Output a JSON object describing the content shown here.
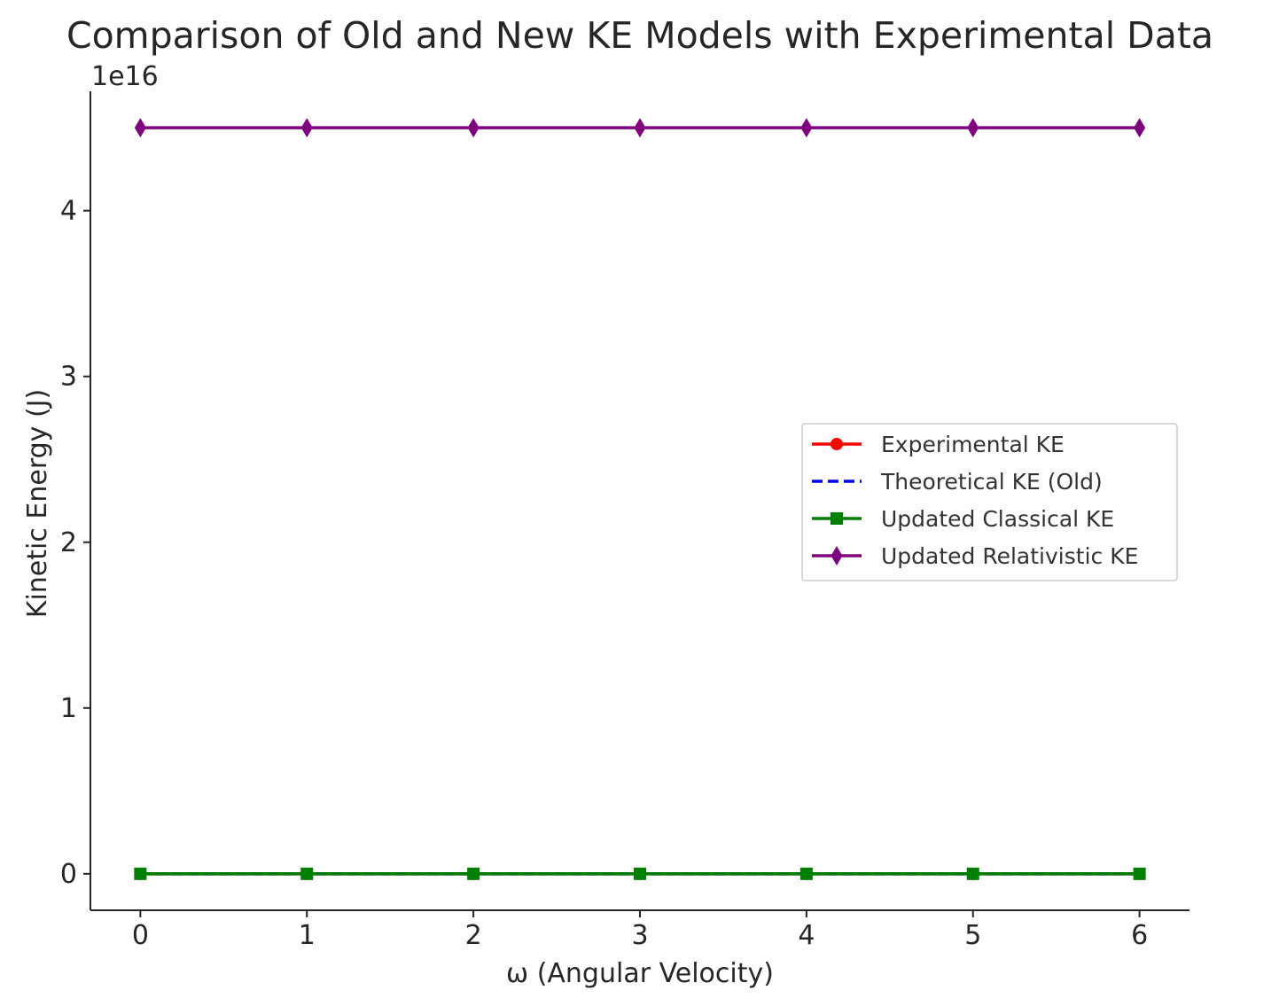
{
  "chart_data": {
    "type": "line",
    "title": "Comparison of Old and New KE Models with Experimental Data",
    "xlabel": "ω (Angular Velocity)",
    "ylabel": "Kinetic Energy (J)",
    "y_offset_label": "1e16",
    "x": [
      0,
      1,
      2,
      3,
      4,
      5,
      6
    ],
    "xlim": [
      -0.3,
      6.3
    ],
    "ylim": [
      -0.22,
      4.72
    ],
    "y_scale": 1e+16,
    "x_ticks": [
      0,
      1,
      2,
      3,
      4,
      5,
      6
    ],
    "y_ticks": [
      0,
      1,
      2,
      3,
      4
    ],
    "grid": false,
    "legend_position": "center-right",
    "series": [
      {
        "name": "Experimental KE",
        "values": [
          0,
          0,
          0,
          0,
          0,
          0,
          0
        ],
        "color": "#ff0000",
        "line_style": "solid",
        "marker": "circle"
      },
      {
        "name": "Theoretical KE (Old)",
        "values": [
          0,
          0,
          0,
          0,
          0,
          0,
          0
        ],
        "color": "#0000ff",
        "line_style": "dashed",
        "marker": "none"
      },
      {
        "name": "Updated Classical KE",
        "values": [
          0,
          0,
          0,
          0,
          0,
          0,
          0
        ],
        "color": "#008000",
        "line_style": "solid",
        "marker": "square"
      },
      {
        "name": "Updated Relativistic KE",
        "values": [
          4.5,
          4.5,
          4.5,
          4.5,
          4.5,
          4.5,
          4.5
        ],
        "color": "#800080",
        "line_style": "solid",
        "marker": "diamond"
      }
    ]
  }
}
